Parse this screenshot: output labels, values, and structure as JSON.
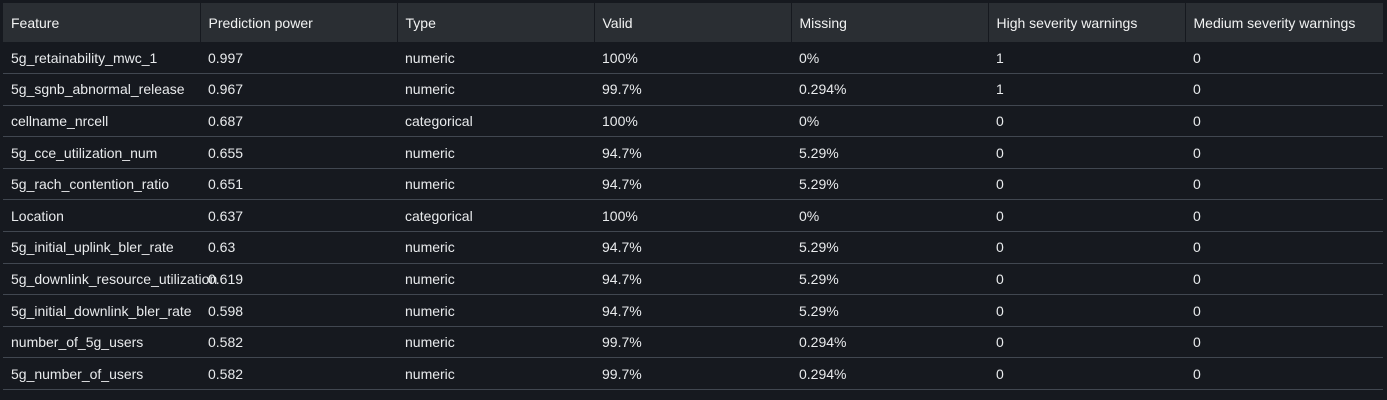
{
  "table": {
    "columns": [
      "Feature",
      "Prediction power",
      "Type",
      "Valid",
      "Missing",
      "High severity warnings",
      "Medium severity warnings"
    ],
    "rows": [
      [
        "5g_retainability_mwc_1",
        "0.997",
        "numeric",
        "100%",
        "0%",
        "1",
        "0"
      ],
      [
        "5g_sgnb_abnormal_release",
        "0.967",
        "numeric",
        "99.7%",
        "0.294%",
        "1",
        "0"
      ],
      [
        "cellname_nrcell",
        "0.687",
        "categorical",
        "100%",
        "0%",
        "0",
        "0"
      ],
      [
        "5g_cce_utilization_num",
        "0.655",
        "numeric",
        "94.7%",
        "5.29%",
        "0",
        "0"
      ],
      [
        "5g_rach_contention_ratio",
        "0.651",
        "numeric",
        "94.7%",
        "5.29%",
        "0",
        "0"
      ],
      [
        "Location",
        "0.637",
        "categorical",
        "100%",
        "0%",
        "0",
        "0"
      ],
      [
        "5g_initial_uplink_bler_rate",
        "0.63",
        "numeric",
        "94.7%",
        "5.29%",
        "0",
        "0"
      ],
      [
        "5g_downlink_resource_utilization",
        "0.619",
        "numeric",
        "94.7%",
        "5.29%",
        "0",
        "0"
      ],
      [
        "5g_initial_downlink_bler_rate",
        "0.598",
        "numeric",
        "94.7%",
        "5.29%",
        "0",
        "0"
      ],
      [
        "number_of_5g_users",
        "0.582",
        "numeric",
        "99.7%",
        "0.294%",
        "0",
        "0"
      ],
      [
        "5g_number_of_users",
        "0.582",
        "numeric",
        "99.7%",
        "0.294%",
        "0",
        "0"
      ]
    ]
  },
  "colors": {
    "background": "#16191f",
    "header_bg": "#2a2e33",
    "row_divider": "#414750",
    "text": "#e9ebed"
  }
}
